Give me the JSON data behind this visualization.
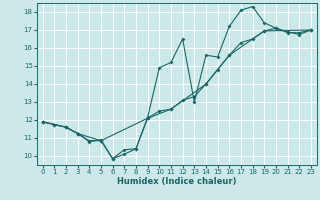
{
  "xlabel": "Humidex (Indice chaleur)",
  "bg_color": "#cce8e8",
  "grid_color": "#ffffff",
  "line_color": "#1a6666",
  "xlim": [
    -0.5,
    23.5
  ],
  "ylim": [
    9.5,
    18.5
  ],
  "xticks": [
    0,
    1,
    2,
    3,
    4,
    5,
    6,
    7,
    8,
    9,
    10,
    11,
    12,
    13,
    14,
    15,
    16,
    17,
    18,
    19,
    20,
    21,
    22,
    23
  ],
  "yticks": [
    10,
    11,
    12,
    13,
    14,
    15,
    16,
    17,
    18
  ],
  "series1_x": [
    0,
    1,
    2,
    3,
    4,
    5,
    6,
    7,
    8,
    9,
    10,
    11,
    12,
    13,
    14,
    15,
    16,
    17,
    18,
    19,
    20,
    21,
    22,
    23
  ],
  "series1_y": [
    11.9,
    11.75,
    11.6,
    11.25,
    10.85,
    10.85,
    9.85,
    10.1,
    10.4,
    12.1,
    12.5,
    12.6,
    13.1,
    13.3,
    14.0,
    14.8,
    15.6,
    16.3,
    16.5,
    16.95,
    17.1,
    16.85,
    16.85,
    17.0
  ],
  "series2_x": [
    0,
    1,
    2,
    3,
    4,
    5,
    6,
    7,
    8,
    9,
    10,
    11,
    12,
    13,
    14,
    15,
    16,
    17,
    18,
    19,
    20,
    21,
    22,
    23
  ],
  "series2_y": [
    11.9,
    11.75,
    11.6,
    11.25,
    10.8,
    10.9,
    9.85,
    10.35,
    10.4,
    12.15,
    14.9,
    15.2,
    16.5,
    13.0,
    15.6,
    15.5,
    17.2,
    18.1,
    18.3,
    17.4,
    17.1,
    16.9,
    16.75,
    17.0
  ],
  "series3_x": [
    0,
    2,
    3,
    5,
    9,
    11,
    14,
    16,
    19,
    23
  ],
  "series3_y": [
    11.9,
    11.6,
    11.25,
    10.85,
    12.1,
    12.6,
    14.0,
    15.6,
    16.95,
    17.0
  ],
  "tick_fontsize": 5.0,
  "xlabel_fontsize": 6.0,
  "marker_size": 2.0,
  "line_width": 0.8
}
